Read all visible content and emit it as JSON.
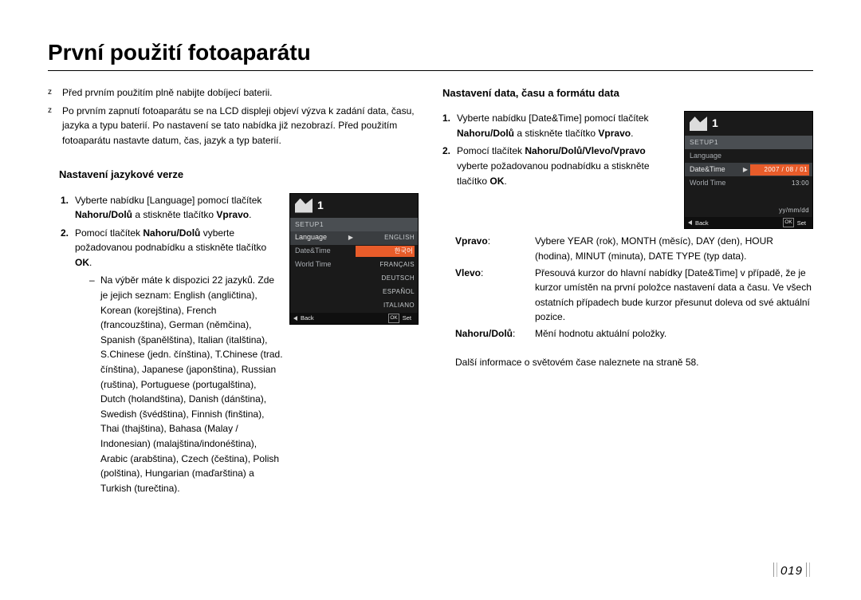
{
  "title": "První použití fotoaparátu",
  "pageNumber": "019",
  "left": {
    "bullets": [
      "Před prvním použitím plně nabijte dobíjecí baterii.",
      "Po prvním zapnutí fotoaparátu se na LCD displeji objeví výzva k zadání data, času, jazyka a typu baterií. Po nastavení se tato nabídka již nezobrazí. Před použitím fotoaparátu nastavte datum, čas, jazyk a typ baterií."
    ],
    "subheading": "Nastavení jazykové verze",
    "steps": [
      {
        "n": "1.",
        "pre": "Vyberte nabídku [Language] pomocí tlačítek ",
        "b1": "Nahoru/Dolů",
        "mid": " a stiskněte tlačítko ",
        "b2": "Vpravo",
        "post": "."
      },
      {
        "n": "2.",
        "pre": "Pomocí tlačítek ",
        "b1": "Nahoru/Dolů",
        "mid": " vyberte požadovanou podnabídku a stiskněte tlačítko ",
        "b2": "OK",
        "post": "."
      }
    ],
    "dash": "Na výběr máte k dispozici 22 jazyků. Zde je jejich seznam: English (angličtina), Korean (korejština), French (francouzština), German (němčina), Spanish (španělština), Italian (italština), S.Chinese (jedn. čínština), T.Chinese (trad. čínština), Japanese (japonština), Russian (ruština), Portuguese (portugalština), Dutch (holandština), Danish (dánština), Swedish (švédština), Finnish (finština), Thai (thajština), Bahasa (Malay / Indonesian) (malajština/indonéština), Arabic (arabština), Czech (čeština), Polish (polština), Hungarian (maďarština) a Turkish (turečtina).",
    "lcd": {
      "section": "SETUP1",
      "rows": [
        {
          "label": "Language",
          "active": true,
          "arrow": true,
          "value": "ENGLISH"
        },
        {
          "label": "Date&Time",
          "value": "한국어",
          "selected": true
        },
        {
          "label": "World Time",
          "value": "FRANÇAIS"
        },
        {
          "label": "",
          "value": "DEUTSCH"
        },
        {
          "label": "",
          "value": "ESPAÑOL"
        },
        {
          "label": "",
          "value": "ITALIANO"
        }
      ],
      "back": "Back",
      "set": "Set"
    }
  },
  "right": {
    "subheading": "Nastavení data, času a formátu data",
    "steps": [
      {
        "n": "1.",
        "pre": "Vyberte nabídku [Date&Time] pomocí tlačítek ",
        "b1": "Nahoru/Dolů",
        "mid": " a stiskněte tlačítko ",
        "b2": "Vpravo",
        "post": "."
      },
      {
        "n": "2.",
        "pre": "Pomocí tlačítek ",
        "b1": "Nahoru/Dolů/Vlevo/Vpravo",
        "mid": " vyberte požadovanou podnabídku a stiskněte tlačítko ",
        "b2": "OK",
        "post": "."
      }
    ],
    "defs": [
      {
        "k": "Vpravo",
        "c": ":",
        "t": "Vybere YEAR (rok), MONTH (měsíc), DAY (den), HOUR (hodina), MINUT (minuta), DATE TYPE (typ data)."
      },
      {
        "k": "Vlevo",
        "c": ":",
        "t": "Přesouvá kurzor do hlavní nabídky [Date&Time] v případě, že je kurzor umístěn na první položce nastavení data a času. Ve všech ostatních případech bude kurzor přesunut doleva od své aktuální pozice."
      },
      {
        "k": "Nahoru/Dolů",
        "c": ":",
        "t": "Mění hodnotu aktuální položky."
      }
    ],
    "note": "Další informace o světovém čase naleznete na straně 58.",
    "lcd": {
      "section": "SETUP1",
      "rows": [
        {
          "label": "Language",
          "value": ""
        },
        {
          "label": "Date&Time",
          "active": true,
          "arrow": true,
          "value": "2007 / 08 / 01",
          "selected": true
        },
        {
          "label": "World Time",
          "value": "13:00"
        },
        {
          "label": "",
          "value": ""
        },
        {
          "label": "",
          "value": "yy/mm/dd"
        }
      ],
      "back": "Back",
      "set": "Set"
    }
  }
}
